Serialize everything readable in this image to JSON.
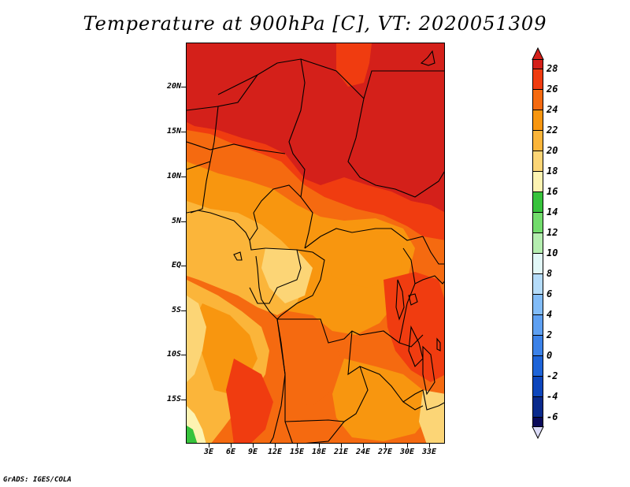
{
  "title": "Temperature at 900hPa [C], VT: 2020051309",
  "footer": "GrADS: IGES/COLA",
  "map": {
    "lat_labels": [
      "20N",
      "15N",
      "10N",
      "5N",
      "EQ",
      "5S",
      "10S",
      "15S"
    ],
    "lon_labels": [
      "3E",
      "6E",
      "9E",
      "12E",
      "15E",
      "18E",
      "21E",
      "24E",
      "27E",
      "30E",
      "33E"
    ]
  },
  "colorbar": {
    "labels": [
      "28",
      "26",
      "24",
      "22",
      "20",
      "18",
      "16",
      "14",
      "12",
      "10",
      "8",
      "6",
      "4",
      "2",
      "0",
      "-2",
      "-4",
      "-6"
    ],
    "colors": {
      "above_28": "#d4201a",
      "26_28": "#f03c10",
      "24_26": "#f56a10",
      "22_24": "#f8960f",
      "20_22": "#fbb53a",
      "18_20": "#fcd576",
      "16_18": "#fdf3b2",
      "14_16": "#37c33c",
      "12_14": "#72dc6c",
      "10_12": "#b5eeb0",
      "8_10": "#e2f8f8",
      "6_8": "#b5dcfa",
      "4_6": "#82bcf8",
      "2_4": "#5ea0f2",
      "0_2": "#3c82e8",
      "m2_0": "#1e64d8",
      "m4_m2": "#0d46bc",
      "m6_m4": "#0a2a8c",
      "below_m6": "#0a0a5a",
      "underflow": "#dcdcf8"
    }
  }
}
